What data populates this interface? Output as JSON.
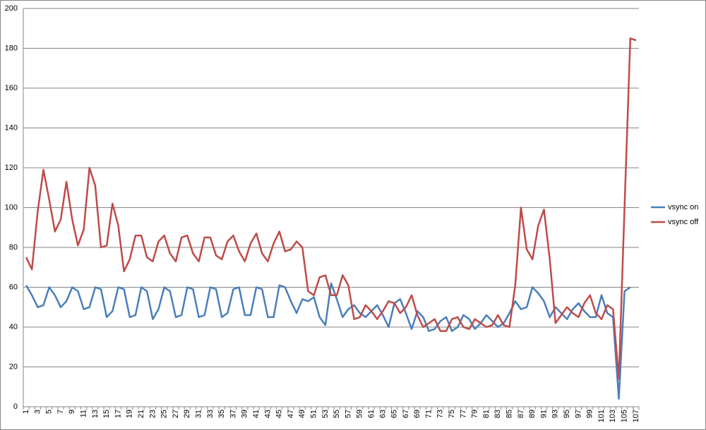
{
  "chart_data": {
    "type": "line",
    "categories": [
      "1",
      null,
      "3",
      null,
      "5",
      null,
      "7",
      null,
      "9",
      null,
      "11",
      null,
      "13",
      null,
      "15",
      null,
      "17",
      null,
      "19",
      null,
      "21",
      null,
      "23",
      null,
      "25",
      null,
      "27",
      null,
      "29",
      null,
      "31",
      null,
      "33",
      null,
      "35",
      null,
      "37",
      null,
      "39",
      null,
      "41",
      null,
      "43",
      null,
      "45",
      null,
      "47",
      null,
      "49",
      null,
      "51",
      null,
      "53",
      null,
      "55",
      null,
      "57",
      null,
      "59",
      null,
      "61",
      null,
      "63",
      null,
      "65",
      null,
      "67",
      null,
      "69",
      null,
      "71",
      null,
      "73",
      null,
      "75",
      null,
      "77",
      null,
      "79",
      null,
      "81",
      null,
      "83",
      null,
      "85",
      null,
      "87",
      null,
      "89",
      null,
      "91",
      null,
      "93",
      null,
      "95",
      null,
      "97",
      null,
      "99",
      null,
      "101",
      null,
      "103",
      null,
      "105",
      null,
      "107"
    ],
    "series": [
      {
        "name": "vsync on",
        "color": "#4a7ebb",
        "values": [
          61,
          56,
          50,
          51,
          60,
          56,
          50,
          53,
          60,
          58,
          49,
          50,
          60,
          59,
          45,
          48,
          60,
          59,
          45,
          46,
          60,
          58,
          44,
          49,
          60,
          58,
          45,
          46,
          60,
          59,
          45,
          46,
          60,
          59,
          45,
          47,
          59,
          60,
          46,
          46,
          60,
          59,
          45,
          45,
          61,
          60,
          53,
          47,
          54,
          53,
          55,
          45,
          41,
          62,
          54,
          45,
          49,
          51,
          47,
          45,
          48,
          51,
          46,
          40,
          52,
          54,
          47,
          39,
          48,
          45,
          38,
          39,
          43,
          45,
          38,
          40,
          46,
          44,
          39,
          42,
          46,
          43,
          40,
          42,
          47,
          53,
          49,
          50,
          60,
          57,
          53,
          45,
          50,
          47,
          44,
          49,
          52,
          48,
          45,
          45,
          56,
          47,
          45,
          4,
          58,
          60,
          null
        ]
      },
      {
        "name": "vsync off",
        "color": "#be4b48",
        "values": [
          75,
          69,
          98,
          119,
          104,
          88,
          94,
          113,
          94,
          81,
          89,
          120,
          111,
          80,
          81,
          102,
          91,
          68,
          74,
          86,
          86,
          75,
          73,
          83,
          86,
          77,
          73,
          85,
          86,
          77,
          73,
          85,
          85,
          76,
          74,
          83,
          86,
          78,
          73,
          82,
          87,
          77,
          73,
          82,
          88,
          78,
          79,
          83,
          80,
          58,
          56,
          65,
          66,
          56,
          56,
          66,
          61,
          44,
          45,
          51,
          48,
          44,
          48,
          53,
          52,
          47,
          50,
          56,
          46,
          40,
          42,
          44,
          38,
          38,
          44,
          45,
          40,
          39,
          44,
          42,
          40,
          41,
          46,
          41,
          40,
          61,
          100,
          79,
          74,
          91,
          99,
          74,
          42,
          46,
          50,
          47,
          45,
          52,
          56,
          47,
          44,
          51,
          49,
          14,
          100,
          185,
          184
        ]
      }
    ],
    "ylim": [
      0,
      200
    ],
    "yticks": [
      0,
      20,
      40,
      60,
      80,
      100,
      120,
      140,
      160,
      180,
      200
    ],
    "grid": true,
    "legend": "right"
  }
}
